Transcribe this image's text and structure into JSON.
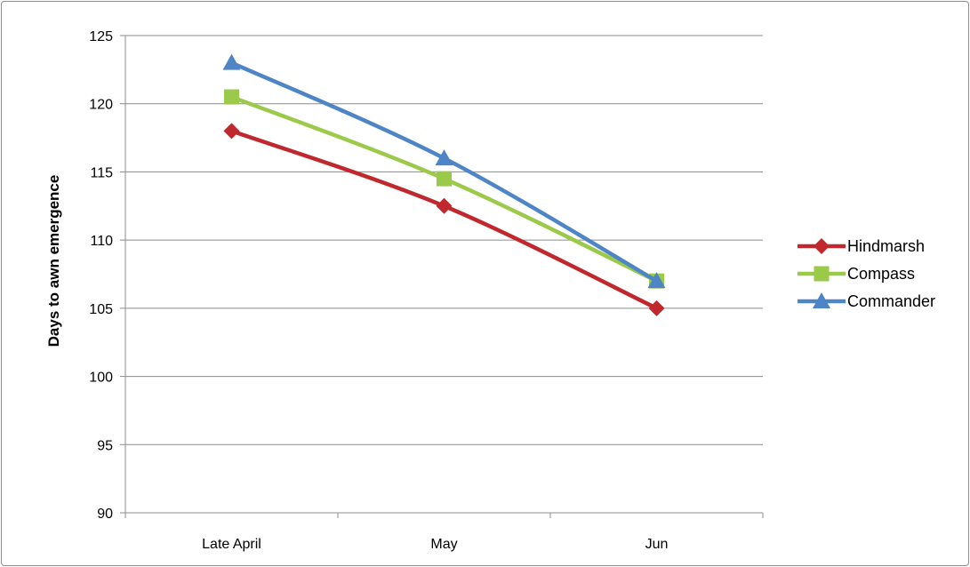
{
  "chart_data": {
    "type": "line",
    "title": "",
    "xlabel": "",
    "ylabel": "Days to awn emergence",
    "categories": [
      "Late April",
      "May",
      "Jun"
    ],
    "ylim": [
      90,
      125
    ],
    "yticks": [
      90,
      95,
      100,
      105,
      110,
      115,
      120,
      125
    ],
    "grid": true,
    "legend": "right",
    "series": [
      {
        "name": "Hindmarsh",
        "values": [
          118,
          112.5,
          105
        ],
        "color": "#c0282d",
        "marker": "diamond"
      },
      {
        "name": "Compass",
        "values": [
          120.5,
          114.5,
          107
        ],
        "color": "#9bc94a",
        "marker": "square"
      },
      {
        "name": "Commander",
        "values": [
          123,
          116,
          107
        ],
        "color": "#4e85c6",
        "marker": "triangle"
      }
    ]
  }
}
